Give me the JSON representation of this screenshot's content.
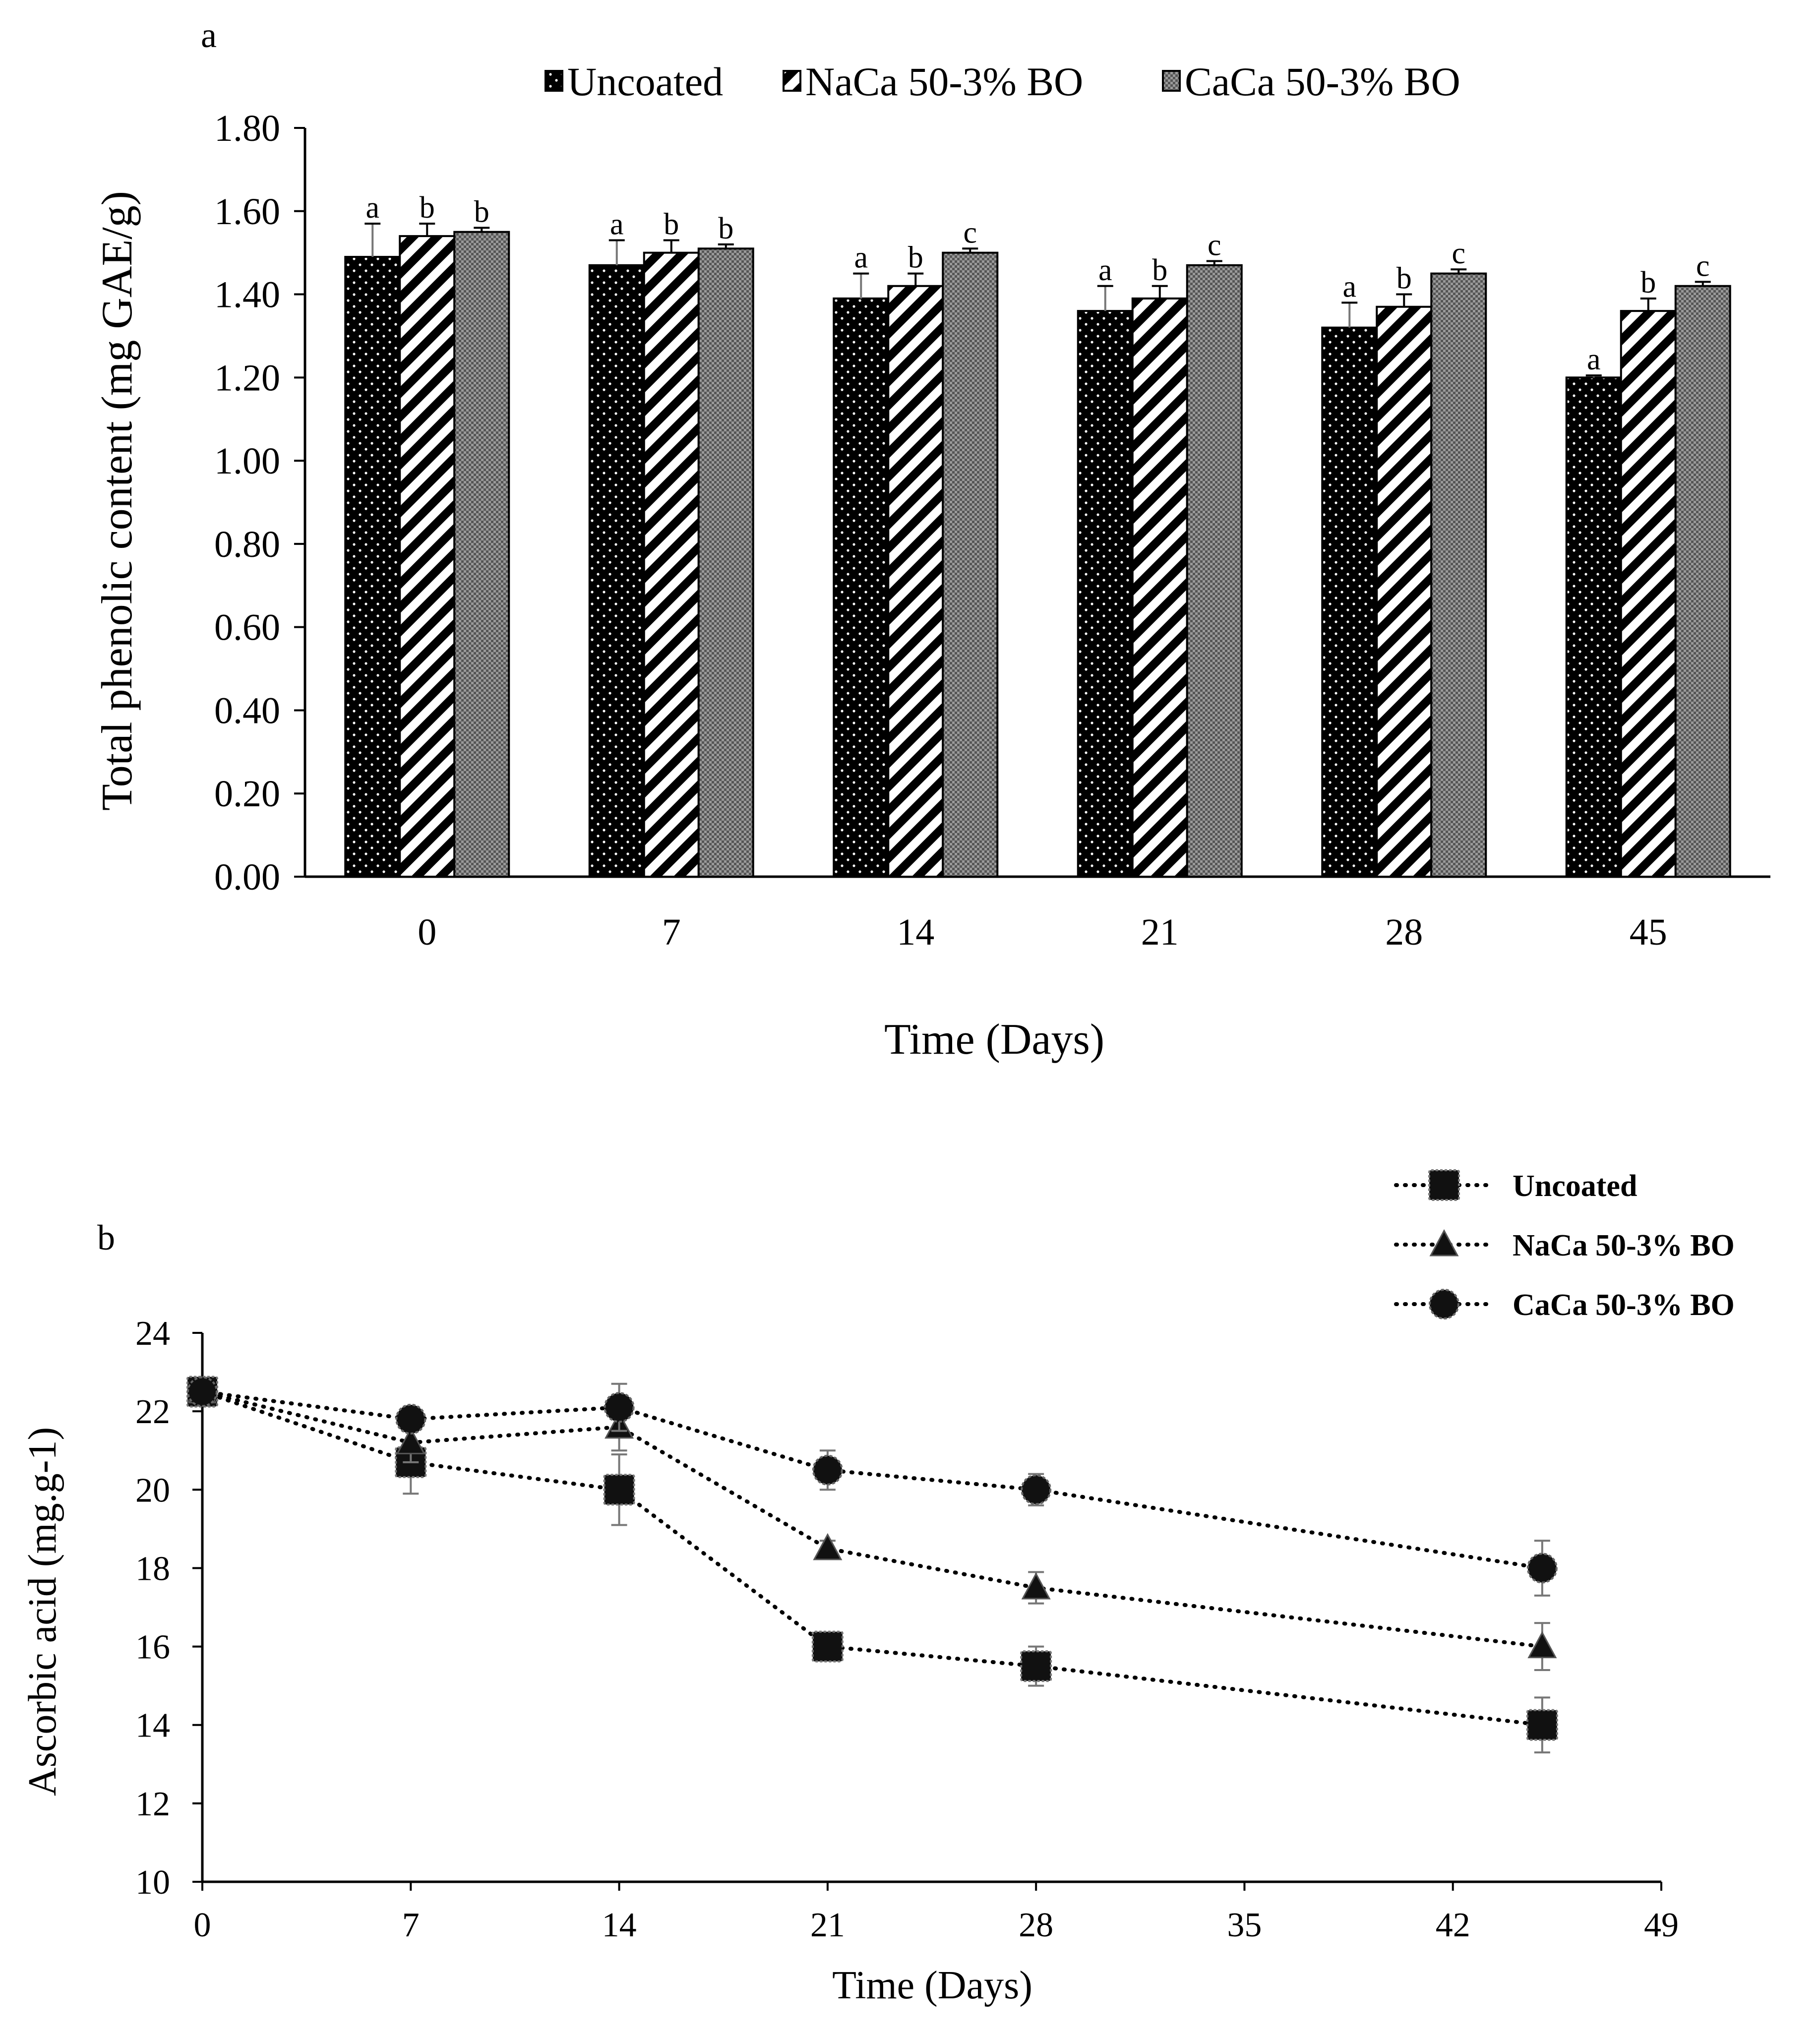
{
  "panel_a_label": "a",
  "panel_b_label": "b",
  "chart_data": [
    {
      "type": "bar",
      "panel": "a",
      "xlabel": "Time (Days)",
      "ylabel": "Total phenolic content (mg GAE/g)",
      "ylim": [
        0,
        1.8
      ],
      "yticks": [
        "0.00",
        "0.20",
        "0.40",
        "0.60",
        "0.80",
        "1.00",
        "1.20",
        "1.40",
        "1.60",
        "1.80"
      ],
      "categories": [
        "0",
        "7",
        "14",
        "21",
        "28",
        "45"
      ],
      "legend_position": "top",
      "series": [
        {
          "name": "Uncoated",
          "pattern": "dots",
          "values": [
            1.49,
            1.47,
            1.39,
            1.36,
            1.32,
            1.2
          ],
          "errors": [
            0.08,
            0.06,
            0.06,
            0.06,
            0.06,
            0.005
          ],
          "letters": [
            "a",
            "a",
            "a",
            "a",
            "a",
            "a"
          ]
        },
        {
          "name": "NaCa 50-3% BO",
          "pattern": "stripes",
          "values": [
            1.54,
            1.5,
            1.42,
            1.39,
            1.37,
            1.36
          ],
          "errors": [
            0.03,
            0.03,
            0.03,
            0.03,
            0.03,
            0.03
          ],
          "letters": [
            "b",
            "b",
            "b",
            "b",
            "b",
            "b"
          ]
        },
        {
          "name": "CaCa 50-3% BO",
          "pattern": "checker",
          "values": [
            1.55,
            1.51,
            1.5,
            1.47,
            1.45,
            1.42
          ],
          "errors": [
            0.01,
            0.01,
            0.01,
            0.01,
            0.01,
            0.01
          ],
          "letters": [
            "b",
            "b",
            "c",
            "c",
            "c",
            "c"
          ]
        }
      ]
    },
    {
      "type": "line",
      "panel": "b",
      "xlabel": "Time (Days)",
      "ylabel": "Ascorbic acid (mg.g-1)",
      "xlim": [
        0,
        49
      ],
      "ylim": [
        10,
        24
      ],
      "xticks": [
        0,
        7,
        14,
        21,
        28,
        35,
        42,
        49
      ],
      "yticks": [
        10,
        12,
        14,
        16,
        18,
        20,
        22,
        24
      ],
      "legend_position": "top-right",
      "series": [
        {
          "name": "Uncoated",
          "marker": "square",
          "x": [
            0,
            7,
            14,
            21,
            28,
            45
          ],
          "y": [
            22.5,
            20.7,
            20.0,
            16.0,
            15.5,
            14.0
          ],
          "errors": [
            0.0,
            0.8,
            0.9,
            0.3,
            0.5,
            0.7
          ]
        },
        {
          "name": "NaCa 50-3% BO",
          "marker": "triangle",
          "x": [
            0,
            7,
            14,
            21,
            28,
            45
          ],
          "y": [
            22.5,
            21.2,
            21.6,
            18.5,
            17.5,
            16.0
          ],
          "errors": [
            0.0,
            0.5,
            0.6,
            0.2,
            0.4,
            0.6
          ]
        },
        {
          "name": "CaCa 50-3% BO",
          "marker": "circle",
          "x": [
            0,
            7,
            14,
            21,
            28,
            45
          ],
          "y": [
            22.5,
            21.8,
            22.1,
            20.5,
            20.0,
            18.0
          ],
          "errors": [
            0.0,
            0.3,
            0.6,
            0.5,
            0.4,
            0.7
          ]
        }
      ]
    }
  ]
}
